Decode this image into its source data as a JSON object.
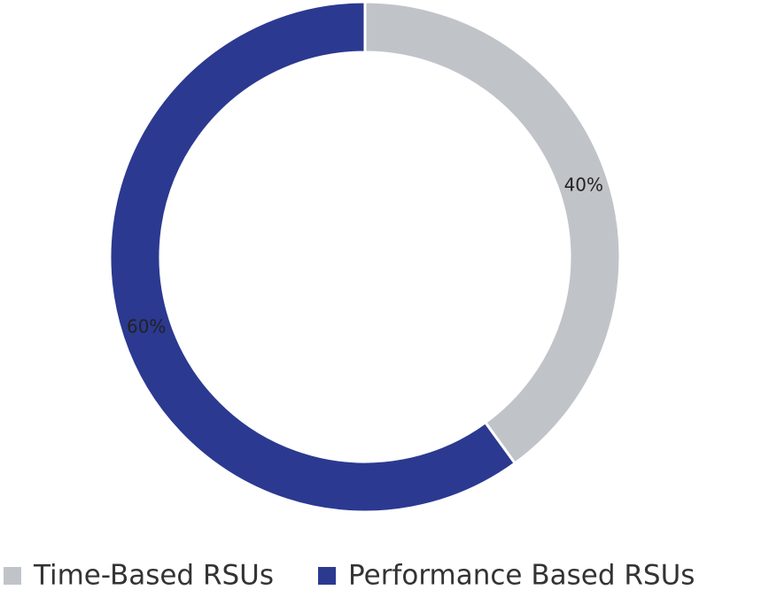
{
  "chart_data": {
    "type": "pie",
    "categories": [
      "Time-Based RSUs",
      "Performance Based RSUs"
    ],
    "values": [
      40,
      60
    ],
    "value_labels": [
      "40%",
      "60%"
    ],
    "colors": [
      "#c0c4c9",
      "#2b3990"
    ],
    "donut": true,
    "legend": "bottom"
  }
}
